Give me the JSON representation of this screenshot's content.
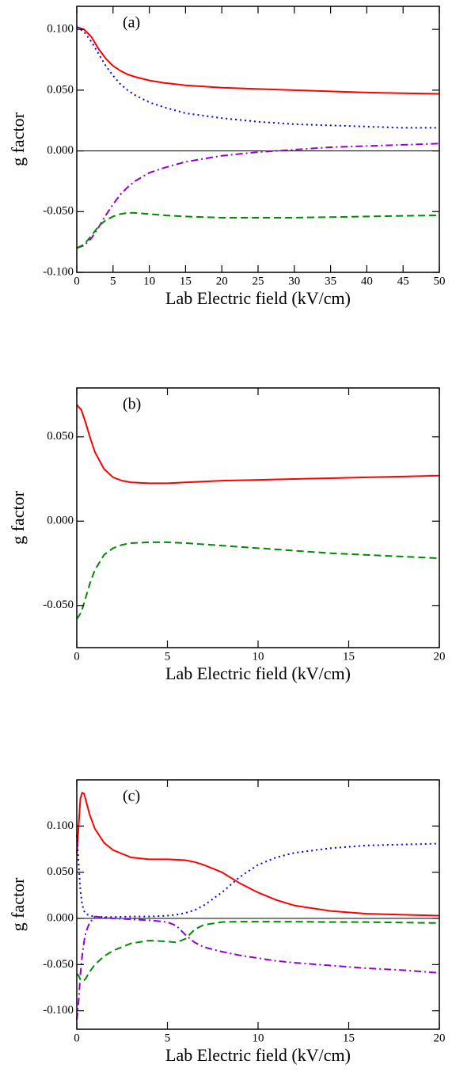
{
  "chart_data": [
    {
      "type": "line",
      "annotation": "(a)",
      "xlabel": "Lab Electric field (kV/cm)",
      "ylabel": "g factor",
      "xlim": [
        0,
        50
      ],
      "xticks": [
        0,
        5,
        10,
        15,
        20,
        25,
        30,
        35,
        40,
        45,
        50
      ],
      "ylim": [
        -0.1,
        0.119
      ],
      "yticks": [
        {
          "value": -0.1,
          "label": "-0.100"
        },
        {
          "value": -0.05,
          "label": "-0.050"
        },
        {
          "value": 0,
          "label": "0.000"
        },
        {
          "value": 0.05,
          "label": "0.050"
        },
        {
          "value": 0.1,
          "label": "0.100"
        }
      ],
      "zero_line": true,
      "x": [
        0,
        1,
        2,
        3,
        4,
        5,
        6,
        7,
        8,
        10,
        12,
        15,
        20,
        25,
        30,
        35,
        40,
        45,
        50
      ],
      "series": [
        {
          "color": "#ff0000",
          "dash": "solid",
          "values": [
            0.102,
            0.1,
            0.094,
            0.084,
            0.076,
            0.07,
            0.066,
            0.063,
            0.061,
            0.058,
            0.056,
            0.054,
            0.052,
            0.051,
            0.05,
            0.049,
            0.048,
            0.0475,
            0.047
          ]
        },
        {
          "color": "#0000ff",
          "dash": "dotted",
          "values": [
            0.102,
            0.098,
            0.09,
            0.08,
            0.07,
            0.062,
            0.055,
            0.05,
            0.046,
            0.04,
            0.036,
            0.031,
            0.027,
            0.024,
            0.022,
            0.021,
            0.02,
            0.019,
            0.019
          ]
        },
        {
          "color": "#9400d3",
          "dash": "dashdot",
          "values": [
            -0.08,
            -0.078,
            -0.072,
            -0.063,
            -0.053,
            -0.044,
            -0.036,
            -0.03,
            -0.025,
            -0.018,
            -0.014,
            -0.009,
            -0.004,
            -0.001,
            0.001,
            0.003,
            0.004,
            0.005,
            0.006
          ]
        },
        {
          "color": "#008b00",
          "dash": "dashed",
          "values": [
            -0.08,
            -0.077,
            -0.07,
            -0.062,
            -0.057,
            -0.054,
            -0.052,
            -0.051,
            -0.051,
            -0.052,
            -0.053,
            -0.054,
            -0.055,
            -0.055,
            -0.055,
            -0.0545,
            -0.054,
            -0.0535,
            -0.053
          ]
        }
      ]
    },
    {
      "type": "line",
      "annotation": "(b)",
      "xlabel": "Lab Electric field (kV/cm)",
      "ylabel": "g factor",
      "xlim": [
        0,
        20
      ],
      "xticks": [
        0,
        5,
        10,
        15,
        20
      ],
      "ylim": [
        -0.075,
        0.079
      ],
      "yticks": [
        {
          "value": -0.05,
          "label": "-0.050"
        },
        {
          "value": 0,
          "label": "0.000"
        },
        {
          "value": 0.05,
          "label": "0.050"
        }
      ],
      "zero_line": false,
      "x": [
        0,
        0.25,
        0.5,
        0.75,
        1,
        1.5,
        2,
        2.5,
        3,
        4,
        5,
        6,
        8,
        10,
        12,
        14,
        16,
        18,
        20
      ],
      "series": [
        {
          "color": "#ff0000",
          "dash": "solid",
          "values": [
            0.069,
            0.066,
            0.058,
            0.049,
            0.041,
            0.031,
            0.026,
            0.024,
            0.023,
            0.0225,
            0.0225,
            0.023,
            0.024,
            0.0245,
            0.025,
            0.0255,
            0.026,
            0.0265,
            0.027
          ]
        },
        {
          "color": "#008b00",
          "dash": "dashed",
          "values": [
            -0.058,
            -0.054,
            -0.045,
            -0.036,
            -0.029,
            -0.02,
            -0.016,
            -0.014,
            -0.013,
            -0.0125,
            -0.0125,
            -0.013,
            -0.0145,
            -0.016,
            -0.0175,
            -0.019,
            -0.02,
            -0.021,
            -0.022
          ]
        }
      ]
    },
    {
      "type": "line",
      "annotation": "(c)",
      "xlabel": "Lab Electric field (kV/cm)",
      "ylabel": "g factor",
      "xlim": [
        0,
        20
      ],
      "xticks": [
        0,
        5,
        10,
        15,
        20
      ],
      "ylim": [
        -0.12,
        0.15
      ],
      "yticks": [
        {
          "value": -0.1,
          "label": "-0.100"
        },
        {
          "value": -0.05,
          "label": "-0.050"
        },
        {
          "value": 0,
          "label": "0.000"
        },
        {
          "value": 0.05,
          "label": "0.050"
        },
        {
          "value": 0.1,
          "label": "0.100"
        }
      ],
      "zero_line": true,
      "x": [
        0,
        0.1,
        0.2,
        0.3,
        0.4,
        0.5,
        0.7,
        1,
        1.5,
        2,
        3,
        4,
        5,
        5.5,
        6,
        6.5,
        7,
        8,
        9,
        10,
        11,
        12,
        14,
        16,
        18,
        20
      ],
      "series": [
        {
          "color": "#ff0000",
          "dash": "solid",
          "values": [
            0.07,
            0.1,
            0.13,
            0.136,
            0.135,
            0.128,
            0.113,
            0.097,
            0.082,
            0.074,
            0.066,
            0.064,
            0.064,
            0.0635,
            0.063,
            0.061,
            0.058,
            0.05,
            0.038,
            0.028,
            0.02,
            0.014,
            0.008,
            0.005,
            0.004,
            0.003
          ]
        },
        {
          "color": "#0000ff",
          "dash": "dotted",
          "values": [
            0.09,
            0.06,
            0.03,
            0.015,
            0.008,
            0.005,
            0.003,
            0.002,
            0.0015,
            0.0015,
            0.002,
            0.002,
            0.003,
            0.004,
            0.006,
            0.009,
            0.014,
            0.028,
            0.045,
            0.058,
            0.066,
            0.071,
            0.076,
            0.079,
            0.08,
            0.081
          ]
        },
        {
          "color": "#9400d3",
          "dash": "dashdot",
          "values": [
            -0.11,
            -0.09,
            -0.06,
            -0.04,
            -0.025,
            -0.015,
            -0.005,
            0.002,
            0.001,
            0.0,
            -0.001,
            -0.002,
            -0.004,
            -0.008,
            -0.018,
            -0.026,
            -0.031,
            -0.036,
            -0.04,
            -0.043,
            -0.046,
            -0.048,
            -0.051,
            -0.054,
            -0.056,
            -0.059
          ]
        },
        {
          "color": "#008b00",
          "dash": "dashed",
          "values": [
            -0.06,
            -0.062,
            -0.066,
            -0.068,
            -0.067,
            -0.065,
            -0.058,
            -0.05,
            -0.041,
            -0.035,
            -0.027,
            -0.024,
            -0.025,
            -0.026,
            -0.022,
            -0.012,
            -0.007,
            -0.004,
            -0.0035,
            -0.0035,
            -0.0035,
            -0.0035,
            -0.004,
            -0.004,
            -0.0045,
            -0.005
          ]
        }
      ]
    }
  ]
}
